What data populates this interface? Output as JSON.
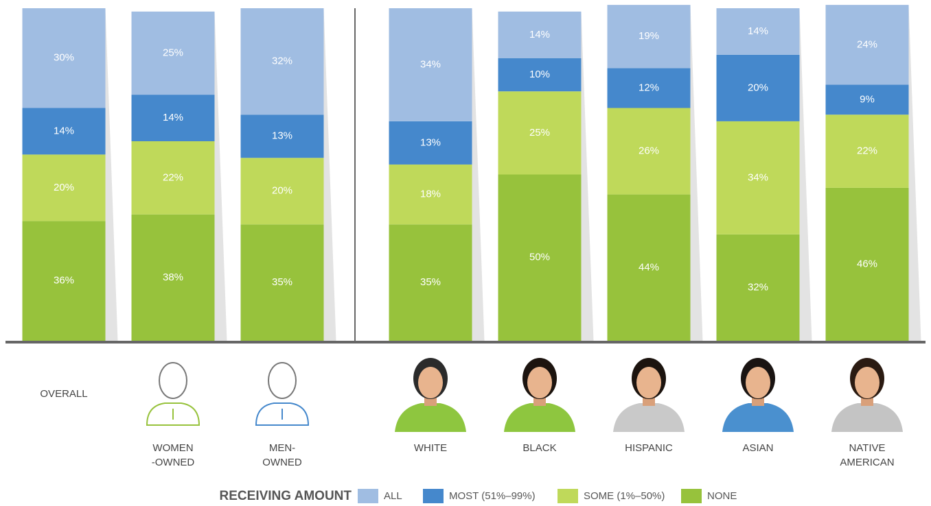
{
  "chart_data": {
    "type": "stacked-bar",
    "categories": [
      "OVERALL",
      "WOMEN\n-OWNED",
      "MEN-\nOWNED",
      "WHITE",
      "BLACK",
      "HISPANIC",
      "ASIAN",
      "NATIVE\nAMERICAN"
    ],
    "ylim": [
      0,
      100
    ],
    "legend_title": "RECEIVING AMOUNT",
    "series": [
      {
        "name": "NONE",
        "color": "#97c23c",
        "values": [
          36,
          38,
          35,
          35,
          50,
          44,
          32,
          46
        ],
        "value_labels": [
          "36%",
          "38%",
          "35%",
          "35%",
          "50%",
          "44%",
          "32%",
          "46%"
        ]
      },
      {
        "name": "SOME (1%–50%)",
        "color": "#bfd95a",
        "values": [
          20,
          22,
          20,
          18,
          25,
          26,
          34,
          22
        ],
        "value_labels": [
          "20%",
          "22%",
          "20%",
          "18%",
          "25%",
          "26%",
          "34%",
          "22%"
        ]
      },
      {
        "name": "MOST (51%–99%)",
        "color": "#4588cc",
        "values": [
          14,
          14,
          13,
          13,
          10,
          12,
          20,
          9
        ],
        "value_labels": [
          "14%",
          "14%",
          "13%",
          "13%",
          "10%",
          "12%",
          "20%",
          "9%"
        ]
      },
      {
        "name": "ALL",
        "color": "#a0bde2",
        "values": [
          30,
          25,
          32,
          34,
          14,
          19,
          14,
          24
        ],
        "value_labels": [
          "30%",
          "25%",
          "32%",
          "34%",
          "14%",
          "19%",
          "14%",
          "24%"
        ]
      }
    ]
  }
}
